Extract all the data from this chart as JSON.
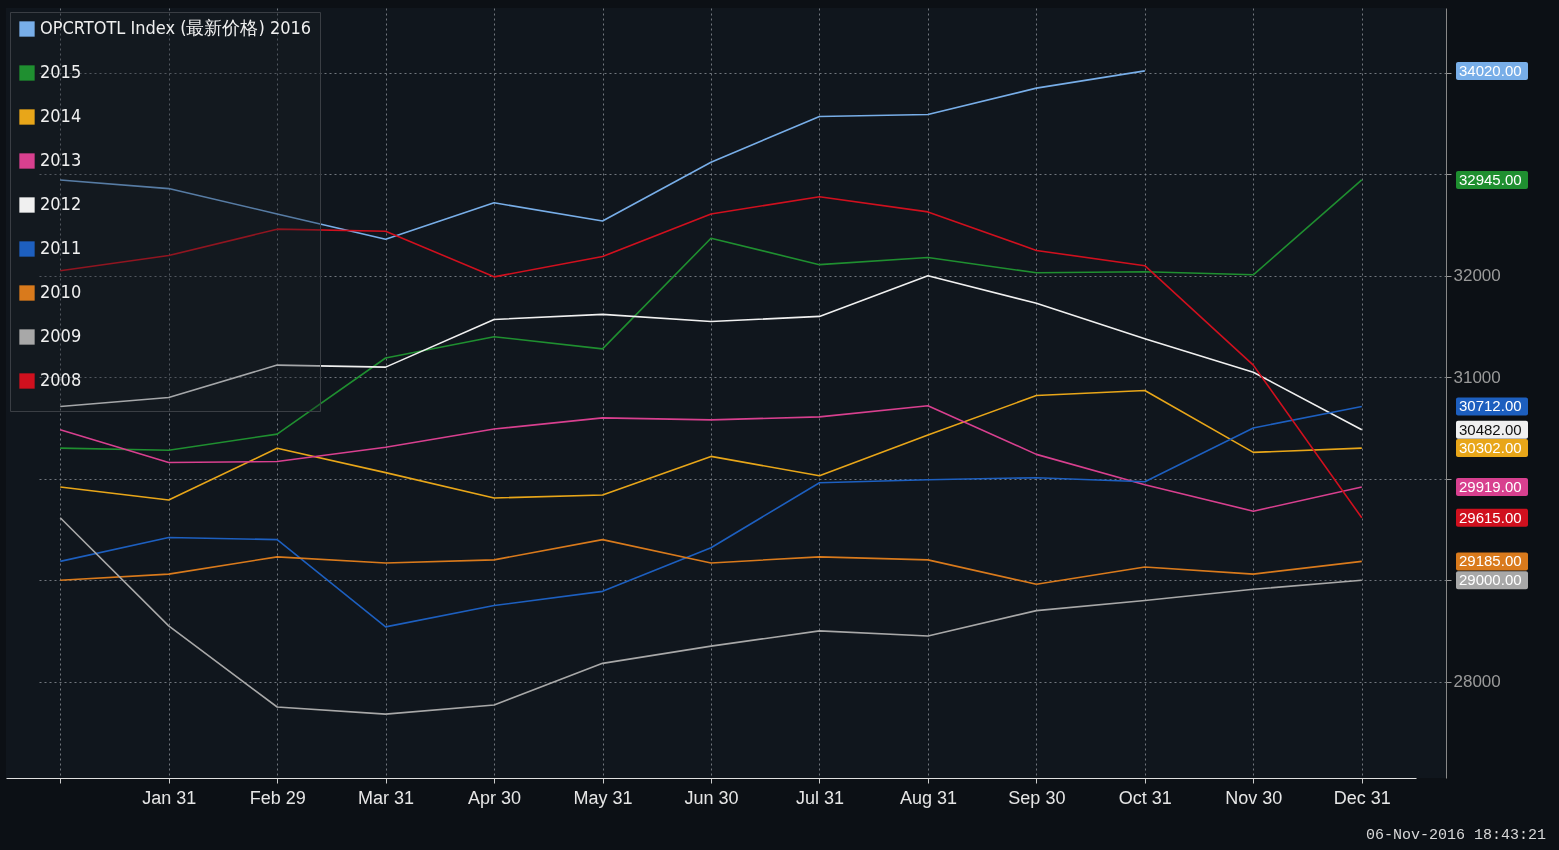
{
  "chart_data": {
    "type": "line",
    "categories": [
      null,
      "Jan 31",
      "Feb 29",
      "Mar 31",
      "Apr 30",
      "May 31",
      "Jun 30",
      "Jul 31",
      "Aug 31",
      "Sep 30",
      "Oct 31",
      "Nov 30",
      "Dec 31"
    ],
    "series": [
      {
        "name": "OPCRTOTL Index (最新价格) 2016",
        "color": "#78aee8",
        "values": [
          32945,
          32860,
          32610,
          32360,
          32720,
          32540,
          33120,
          33570,
          33590,
          33850,
          34020,
          null,
          null
        ]
      },
      {
        "name": "2015",
        "color": "#1f8f30",
        "values": [
          30302,
          30280,
          30440,
          31190,
          31400,
          31280,
          32370,
          32110,
          32180,
          32030,
          32040,
          32010,
          32945
        ]
      },
      {
        "name": "2014",
        "color": "#e8a619",
        "values": [
          29919,
          29790,
          30300,
          30060,
          29810,
          29840,
          30220,
          30030,
          30430,
          30820,
          30870,
          30260,
          30302
        ]
      },
      {
        "name": "2013",
        "color": "#d8408f",
        "values": [
          30482,
          30160,
          30170,
          30310,
          30490,
          30600,
          30580,
          30610,
          30720,
          30240,
          29940,
          29680,
          29919
        ]
      },
      {
        "name": "2012",
        "color": "#f0f0f0",
        "values": [
          30712,
          30800,
          31120,
          31100,
          31570,
          31620,
          31550,
          31600,
          32000,
          31730,
          31380,
          31050,
          30482
        ]
      },
      {
        "name": "2011",
        "color": "#1d5fbf",
        "values": [
          29185,
          29420,
          29400,
          28540,
          28750,
          28890,
          29320,
          29960,
          29990,
          30010,
          29970,
          30500,
          30712
        ]
      },
      {
        "name": "2010",
        "color": "#d97a1c",
        "values": [
          29000,
          29060,
          29230,
          29170,
          29200,
          29400,
          29170,
          29230,
          29200,
          28960,
          29130,
          29060,
          29185
        ]
      },
      {
        "name": "2009",
        "color": "#a8a8a8",
        "values": [
          29615,
          28550,
          27750,
          27680,
          27770,
          28180,
          28350,
          28500,
          28450,
          28700,
          28800,
          28910,
          29000
        ]
      },
      {
        "name": "2008",
        "color": "#d0101e",
        "values": [
          32050,
          32200,
          32460,
          32440,
          31990,
          32190,
          32610,
          32780,
          32630,
          32250,
          32100,
          31120,
          29615
        ]
      }
    ],
    "ylim": [
      27050,
      34640
    ],
    "yticks": [
      28000,
      {
        "value": 29000,
        "label": null
      },
      {
        "value": 30000,
        "label": null
      },
      31000,
      32000,
      {
        "value": 33000,
        "label": null
      },
      {
        "value": 34000,
        "label": null
      }
    ],
    "grid": true,
    "legend": "top left",
    "annotations": [
      "34020.00",
      "32945.00",
      "30302.00",
      "29919.00",
      "30482.00",
      "30712.00",
      "29185.00",
      "29000.00",
      "29615.00",
      "06-Nov-2016 18:43:21"
    ]
  }
}
